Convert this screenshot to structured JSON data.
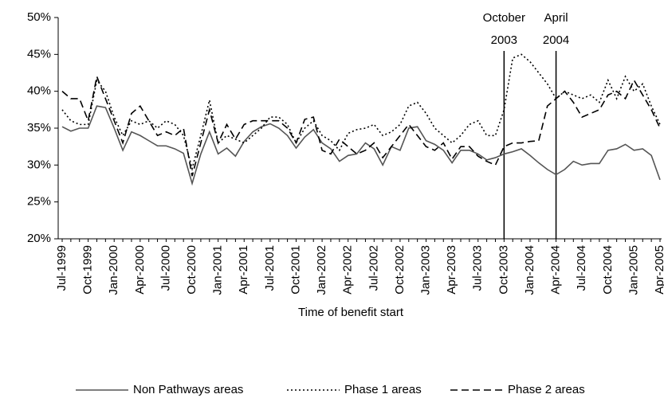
{
  "chart_data": {
    "type": "line",
    "x_label": "Time of benefit start",
    "categories": [
      "Jul-1999",
      null,
      null,
      "Oct-1999",
      null,
      null,
      "Jan-2000",
      null,
      null,
      "Apr-2000",
      null,
      null,
      "Jul-2000",
      null,
      null,
      "Oct-2000",
      null,
      null,
      "Jan-2001",
      null,
      null,
      "Apr-2001",
      null,
      null,
      "Jul-2001",
      null,
      null,
      "Oct-2001",
      null,
      null,
      "Jan-2002",
      null,
      null,
      "Apr-2002",
      null,
      null,
      "Jul-2002",
      null,
      null,
      "Oct-2002",
      null,
      null,
      "Jan-2003",
      null,
      null,
      "Apr-2003",
      null,
      null,
      "Jul-2003",
      null,
      null,
      "Oct-2003",
      null,
      null,
      "Jan-2004",
      null,
      null,
      "Apr-2004",
      null,
      null,
      "Jul-2004",
      null,
      null,
      "Oct-2004",
      null,
      null,
      "Jan-2005",
      null,
      null,
      "Apr-2005"
    ],
    "ylim": [
      20,
      50
    ],
    "yticks": [
      {
        "value": 20,
        "label": "20%"
      },
      {
        "value": 25,
        "label": "25%"
      },
      {
        "value": 30,
        "label": "30%"
      },
      {
        "value": 35,
        "label": "35%"
      },
      {
        "value": 40,
        "label": "40%"
      },
      {
        "value": 45,
        "label": "45%"
      },
      {
        "value": 50,
        "label": "50%"
      }
    ],
    "grid": false,
    "legend": "bottom",
    "annotations": [
      {
        "text": [
          "October",
          "2003"
        ],
        "at": "Oct-2003"
      },
      {
        "text": [
          "April",
          "2004"
        ],
        "at": "Apr-2004"
      }
    ],
    "series": [
      {
        "name": "Non Pathways areas",
        "color": "#555555",
        "dash": "solid",
        "values": [
          35.2,
          34.6,
          35,
          35,
          38,
          37.8,
          35,
          32,
          34.5,
          34,
          33.3,
          32.6,
          32.6,
          32.2,
          31.6,
          27.5,
          31.5,
          34.5,
          31.5,
          32.3,
          31.2,
          33.2,
          34.5,
          35.2,
          35.6,
          35,
          34,
          32.3,
          33.8,
          34.8,
          33,
          32.2,
          30.5,
          31.3,
          31.5,
          33,
          32.2,
          30,
          32.5,
          32,
          35,
          35.2,
          33.3,
          32.8,
          32,
          30.3,
          32,
          32,
          31.5,
          30.7,
          31,
          31.5,
          31.8,
          32.2,
          31.3,
          30.3,
          29.4,
          28.7,
          29.4,
          30.5,
          30,
          30.2,
          30.2,
          32,
          32.2,
          32.8,
          32,
          32.2,
          31.3,
          28
        ]
      },
      {
        "name": "Phase 1 areas",
        "color": "#000000",
        "dash": "dotted",
        "values": [
          37.5,
          36,
          35.5,
          35.5,
          41.5,
          40,
          36.5,
          34,
          36,
          35.5,
          36,
          35,
          36,
          35.5,
          34,
          29.5,
          34,
          38.8,
          33,
          34,
          33.5,
          33,
          34,
          35,
          36.5,
          36.5,
          35.5,
          33,
          35,
          36,
          34,
          33.3,
          32,
          34.3,
          34.8,
          35,
          35.5,
          34,
          34.5,
          35.5,
          38,
          38.5,
          37,
          35,
          34,
          33,
          34,
          35.5,
          36,
          34,
          34,
          37.5,
          44.5,
          45,
          44,
          42.5,
          41,
          39,
          40,
          39.5,
          39,
          39.5,
          38.5,
          41.5,
          39,
          42,
          40,
          41,
          38,
          35.5
        ]
      },
      {
        "name": "Phase 2 areas",
        "color": "#000000",
        "dash": "dashed",
        "values": [
          40,
          39,
          39,
          36,
          42,
          39,
          36,
          33,
          37,
          38,
          36,
          34,
          34.5,
          34,
          35,
          28.5,
          33,
          37.5,
          33,
          35.5,
          33.5,
          35.5,
          36,
          36,
          36,
          36,
          35,
          33,
          36.2,
          36.5,
          32,
          31.5,
          33.5,
          32.5,
          31.5,
          32,
          33,
          31,
          32.5,
          34,
          35.5,
          34,
          32.5,
          32,
          33,
          30.8,
          32.5,
          32.5,
          31.2,
          30.5,
          30,
          32.5,
          33,
          33,
          33.2,
          33.3,
          38,
          39,
          40,
          38.5,
          36.5,
          37,
          37.5,
          39.5,
          40,
          39,
          41.5,
          39.5,
          37.5,
          35
        ]
      }
    ]
  }
}
